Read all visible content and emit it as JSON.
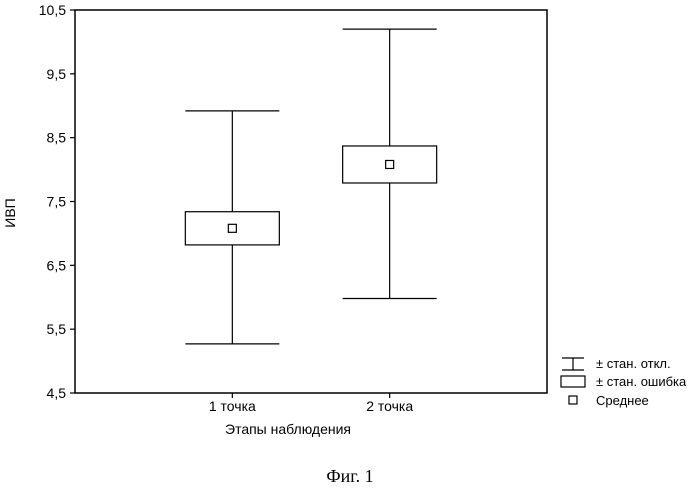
{
  "chart_data": {
    "type": "box",
    "ylabel": "ИВП",
    "xlabel": "Этапы наблюдения",
    "ylim": [
      4.5,
      10.5
    ],
    "yticks": [
      4.5,
      5.5,
      6.5,
      7.5,
      8.5,
      9.5,
      10.5
    ],
    "ytick_labels": [
      "4,5",
      "5,5",
      "6,5",
      "7,5",
      "8,5",
      "9,5",
      "10,5"
    ],
    "categories": [
      "1 точка",
      "2 точка"
    ],
    "mean": [
      7.08,
      8.08
    ],
    "se_low": [
      6.82,
      7.79
    ],
    "se_high": [
      7.34,
      8.37
    ],
    "sd_low": [
      5.27,
      5.98
    ],
    "sd_high": [
      8.92,
      10.2
    ],
    "legend": {
      "placement": "right",
      "items": [
        {
          "symbol": "whisker",
          "label": "± стан. откл."
        },
        {
          "symbol": "box",
          "label": "± стан. ошибка"
        },
        {
          "symbol": "square",
          "label": "Среднее"
        }
      ]
    }
  },
  "caption": "Фиг. 1"
}
